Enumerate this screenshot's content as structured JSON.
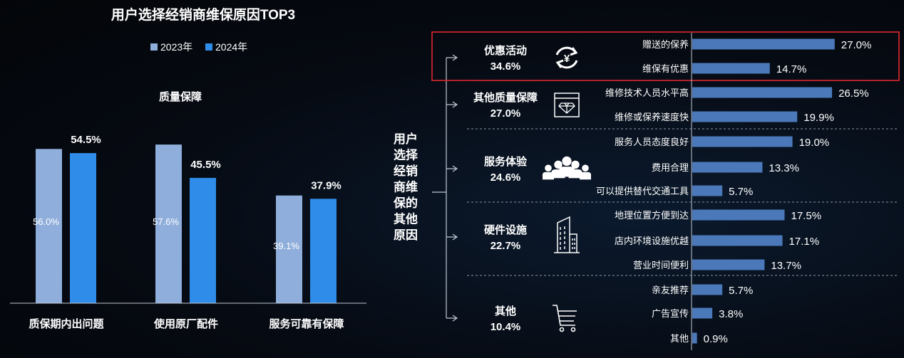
{
  "colors": {
    "series_2023": "#8faedb",
    "series_2024": "#2f8ce8",
    "right_bar": "#4a78b8",
    "highlight_border": "#e0282e",
    "axis": "#bfc7d2",
    "separator": "#8a94a3"
  },
  "chart_data": [
    {
      "type": "bar",
      "title": "用户选择经销商维保原因TOP3",
      "subtitle": "质量保障",
      "legend_position": "top",
      "categories": [
        "质保期内出问题",
        "使用原厂配件",
        "服务可靠有保障"
      ],
      "series": [
        {
          "name": "2023年",
          "values": [
            56.0,
            57.6,
            39.1
          ],
          "labels": [
            "56.0%",
            "57.6%",
            "39.1%"
          ]
        },
        {
          "name": "2024年",
          "values": [
            54.5,
            45.5,
            37.9
          ],
          "labels": [
            "54.5%",
            "45.5%",
            "37.9%"
          ]
        }
      ],
      "ylim": [
        0,
        60
      ],
      "grid": false
    },
    {
      "type": "bar",
      "orientation": "horizontal",
      "root_label": "用户选择经销商维保的其他原因",
      "xlim": [
        0,
        30
      ],
      "grid": false,
      "groups": [
        {
          "name": "优惠活动",
          "value_label": "34.6%",
          "icon": "yen-exchange-icon",
          "highlighted": true,
          "items": [
            {
              "label": "赠送的保养",
              "value": 27.0,
              "value_label": "27.0%"
            },
            {
              "label": "维保有优惠",
              "value": 14.7,
              "value_label": "14.7%"
            }
          ]
        },
        {
          "name": "其他质量保障",
          "value_label": "27.0%",
          "icon": "diamond-window-icon",
          "highlighted": false,
          "items": [
            {
              "label": "维修技术人员水平高",
              "value": 26.5,
              "value_label": "26.5%"
            },
            {
              "label": "维修或保养速度快",
              "value": 19.9,
              "value_label": "19.9%"
            }
          ]
        },
        {
          "name": "服务体验",
          "value_label": "24.6%",
          "icon": "team-people-icon",
          "highlighted": false,
          "items": [
            {
              "label": "服务人员态度良好",
              "value": 19.0,
              "value_label": "19.0%"
            },
            {
              "label": "费用合理",
              "value": 13.3,
              "value_label": "13.3%"
            },
            {
              "label": "可以提供替代交通工具",
              "value": 5.7,
              "value_label": "5.7%"
            }
          ]
        },
        {
          "name": "硬件设施",
          "value_label": "22.7%",
          "icon": "building-icon",
          "highlighted": false,
          "items": [
            {
              "label": "地理位置方便到达",
              "value": 17.5,
              "value_label": "17.5%"
            },
            {
              "label": "店内环境设施优越",
              "value": 17.1,
              "value_label": "17.1%"
            },
            {
              "label": "营业时间便利",
              "value": 13.7,
              "value_label": "13.7%"
            }
          ]
        },
        {
          "name": "其他",
          "value_label": "10.4%",
          "icon": "shopping-cart-icon",
          "highlighted": false,
          "items": [
            {
              "label": "亲友推荐",
              "value": 5.7,
              "value_label": "5.7%"
            },
            {
              "label": "广告宣传",
              "value": 3.8,
              "value_label": "3.8%"
            },
            {
              "label": "其他",
              "value": 0.9,
              "value_label": "0.9%"
            }
          ]
        }
      ]
    }
  ]
}
